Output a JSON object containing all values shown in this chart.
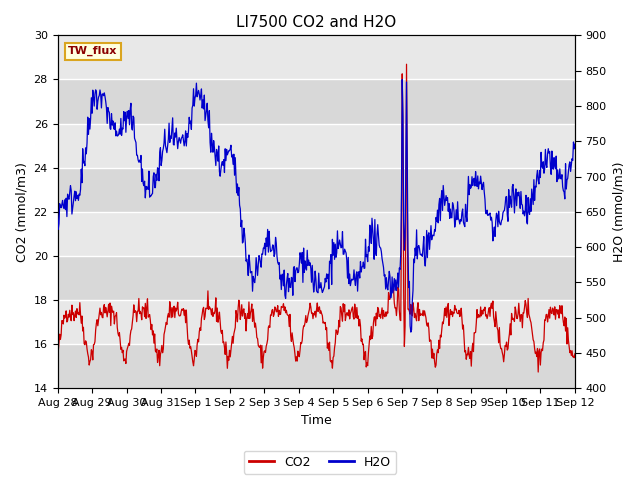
{
  "title": "LI7500 CO2 and H2O",
  "xlabel": "Time",
  "ylabel_left": "CO2 (mmol/m3)",
  "ylabel_right": "H2O (mmol/m3)",
  "ylim_left": [
    14,
    30
  ],
  "ylim_right": [
    400,
    900
  ],
  "yticks_left": [
    14,
    16,
    18,
    20,
    22,
    24,
    26,
    28,
    30
  ],
  "yticks_right": [
    400,
    450,
    500,
    550,
    600,
    650,
    700,
    750,
    800,
    850,
    900
  ],
  "xtick_labels": [
    "Aug 28",
    "Aug 29",
    "Aug 30",
    "Aug 31",
    "Sep 1",
    "Sep 2",
    "Sep 3",
    "Sep 4",
    "Sep 5",
    "Sep 6",
    "Sep 7",
    "Sep 8",
    "Sep 9",
    "Sep 10",
    "Sep 11",
    "Sep 12"
  ],
  "co2_color": "#cc0000",
  "h2o_color": "#0000cc",
  "legend_label_co2": "CO2",
  "legend_label_h2o": "H2O",
  "station_label": "TW_flux",
  "fig_bg_color": "#ffffff",
  "plot_bg_color": "#e8e8e8",
  "grid_color": "#ffffff",
  "title_fontsize": 11,
  "axis_fontsize": 9,
  "tick_fontsize": 8,
  "n_days": 15,
  "pts_per_day": 48
}
